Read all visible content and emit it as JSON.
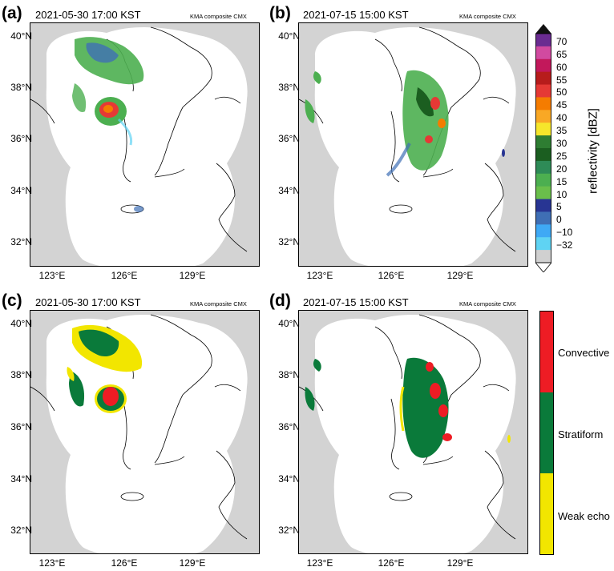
{
  "panels": [
    {
      "label": "(a)",
      "time": "2021-05-30 17:00 KST",
      "source": "KMA composite CMX"
    },
    {
      "label": "(b)",
      "time": "2021-07-15 15:00 KST",
      "source": "KMA composite CMX"
    },
    {
      "label": "(c)",
      "time": "2021-05-30 17:00 KST",
      "source": "KMA composite CMX"
    },
    {
      "label": "(d)",
      "time": "2021-07-15 15:00 KST",
      "source": "KMA composite CMX"
    }
  ],
  "lat_labels": [
    "40°N",
    "38°N",
    "36°N",
    "34°N",
    "32°N"
  ],
  "lon_labels": [
    "123°E",
    "126°E",
    "129°E"
  ],
  "reflectivity_colorbar": {
    "title": "reflectivity [dBZ]",
    "ticks": [
      "70",
      "65",
      "60",
      "55",
      "50",
      "45",
      "40",
      "35",
      "30",
      "25",
      "20",
      "15",
      "10",
      "5",
      "0",
      "−10",
      "−32"
    ],
    "colors": [
      "#6a2c91",
      "#d14aa0",
      "#c2185b",
      "#b71c1c",
      "#e53935",
      "#f57c00",
      "#f9a825",
      "#f6e62b",
      "#2e7d32",
      "#1b5e20",
      "#2e8b57",
      "#4caf50",
      "#6abf4b",
      "#283593",
      "#3f6fb5",
      "#3fa9f5",
      "#5fd3f3",
      "#d0d0d0"
    ]
  },
  "class_colorbar": {
    "categories": [
      "Convective",
      "Stratiform",
      "Weak echo"
    ],
    "colors": [
      "#ee1c24",
      "#0a7a3a",
      "#f2e600"
    ]
  },
  "colors": {
    "land": "#d3d3d3",
    "domain": "#ffffff",
    "coast": "#000000"
  }
}
